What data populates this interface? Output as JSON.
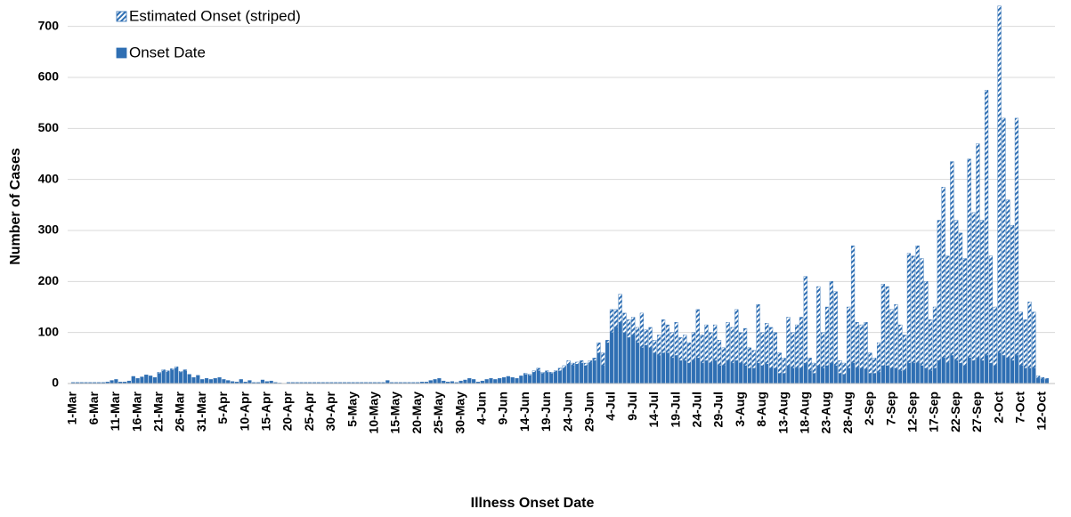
{
  "chart_data": {
    "type": "stacked-bar",
    "xlabel": "Illness Onset Date",
    "ylabel": "Number of Cases",
    "categories": [
      "1-Mar",
      null,
      null,
      null,
      null,
      "6-Mar",
      null,
      null,
      null,
      null,
      "11-Mar",
      null,
      null,
      null,
      null,
      "16-Mar",
      null,
      null,
      null,
      null,
      "21-Mar",
      null,
      null,
      null,
      null,
      "26-Mar",
      null,
      null,
      null,
      null,
      "31-Mar",
      null,
      null,
      null,
      null,
      "5-Apr",
      null,
      null,
      null,
      null,
      "10-Apr",
      null,
      null,
      null,
      null,
      "15-Apr",
      null,
      null,
      null,
      null,
      "20-Apr",
      null,
      null,
      null,
      null,
      "25-Apr",
      null,
      null,
      null,
      null,
      "30-Apr",
      null,
      null,
      null,
      null,
      "5-May",
      null,
      null,
      null,
      null,
      "10-May",
      null,
      null,
      null,
      null,
      "15-May",
      null,
      null,
      null,
      null,
      "20-May",
      null,
      null,
      null,
      null,
      "25-May",
      null,
      null,
      null,
      null,
      "30-May",
      null,
      null,
      null,
      null,
      "4-Jun",
      null,
      null,
      null,
      null,
      "9-Jun",
      null,
      null,
      null,
      null,
      "14-Jun",
      null,
      null,
      null,
      null,
      "19-Jun",
      null,
      null,
      null,
      null,
      "24-Jun",
      null,
      null,
      null,
      null,
      "29-Jun",
      null,
      null,
      null,
      null,
      "4-Jul",
      null,
      null,
      null,
      null,
      "9-Jul",
      null,
      null,
      null,
      null,
      "14-Jul",
      null,
      null,
      null,
      null,
      "19-Jul",
      null,
      null,
      null,
      null,
      "24-Jul",
      null,
      null,
      null,
      null,
      "29-Jul",
      null,
      null,
      null,
      null,
      "3-Aug",
      null,
      null,
      null,
      null,
      "8-Aug",
      null,
      null,
      null,
      null,
      "13-Aug",
      null,
      null,
      null,
      null,
      "18-Aug",
      null,
      null,
      null,
      null,
      "23-Aug",
      null,
      null,
      null,
      null,
      "28-Aug",
      null,
      null,
      null,
      null,
      "2-Sep",
      null,
      null,
      null,
      null,
      "7-Sep",
      null,
      null,
      null,
      null,
      "12-Sep",
      null,
      null,
      null,
      null,
      "17-Sep",
      null,
      null,
      null,
      null,
      "22-Sep",
      null,
      null,
      null,
      null,
      "27-Sep",
      null,
      null,
      null,
      null,
      "2-Oct",
      null,
      null,
      null,
      null,
      "7-Oct",
      null,
      null,
      null,
      null,
      "12-Oct",
      null
    ],
    "series": [
      {
        "name": "Estimated Onset (striped)",
        "color": "#2f6fb3",
        "hatch": true,
        "values": [
          0,
          0,
          0,
          0,
          0,
          0,
          0,
          0,
          0,
          0,
          0,
          0,
          0,
          0,
          0,
          0,
          0,
          0,
          0,
          0,
          2,
          2,
          3,
          2,
          3,
          2,
          2,
          0,
          0,
          0,
          0,
          0,
          0,
          0,
          0,
          0,
          0,
          0,
          0,
          0,
          0,
          0,
          0,
          0,
          0,
          0,
          0,
          0,
          0,
          0,
          0,
          0,
          0,
          0,
          0,
          0,
          0,
          0,
          0,
          0,
          0,
          0,
          0,
          0,
          0,
          0,
          0,
          0,
          0,
          0,
          0,
          0,
          0,
          0,
          0,
          0,
          0,
          0,
          0,
          0,
          0,
          0,
          0,
          0,
          0,
          0,
          0,
          0,
          0,
          0,
          0,
          0,
          0,
          0,
          0,
          0,
          0,
          0,
          0,
          0,
          0,
          0,
          0,
          0,
          0,
          2,
          2,
          3,
          5,
          2,
          3,
          2,
          3,
          5,
          5,
          7,
          5,
          4,
          5,
          5,
          5,
          5,
          20,
          25,
          5,
          45,
          35,
          55,
          38,
          35,
          35,
          30,
          68,
          30,
          40,
          25,
          40,
          65,
          55,
          50,
          65,
          45,
          50,
          40,
          55,
          95,
          55,
          70,
          60,
          70,
          50,
          35,
          75,
          70,
          100,
          60,
          73,
          40,
          35,
          115,
          65,
          80,
          80,
          70,
          40,
          30,
          95,
          70,
          85,
          100,
          170,
          25,
          20,
          155,
          70,
          115,
          160,
          145,
          25,
          22,
          120,
          230,
          90,
          85,
          92,
          40,
          30,
          58,
          160,
          155,
          115,
          125,
          90,
          70,
          215,
          210,
          230,
          210,
          170,
          100,
          120,
          275,
          335,
          210,
          380,
          275,
          255,
          210,
          390,
          290,
          420,
          275,
          520,
          210,
          115,
          680,
          465,
          310,
          265,
          465,
          105,
          95,
          130,
          110,
          5,
          4,
          2
        ]
      },
      {
        "name": "Onset Date",
        "color": "#2f6fb3",
        "hatch": false,
        "values": [
          2,
          2,
          2,
          2,
          2,
          2,
          2,
          2,
          3,
          6,
          8,
          3,
          3,
          5,
          14,
          10,
          13,
          17,
          15,
          12,
          20,
          25,
          22,
          27,
          30,
          22,
          25,
          18,
          12,
          16,
          8,
          10,
          8,
          10,
          12,
          8,
          6,
          4,
          3,
          8,
          3,
          6,
          2,
          2,
          7,
          4,
          5,
          2,
          1,
          0,
          2,
          2,
          2,
          2,
          2,
          2,
          2,
          2,
          2,
          2,
          2,
          2,
          2,
          2,
          2,
          2,
          2,
          2,
          2,
          2,
          2,
          2,
          2,
          6,
          2,
          2,
          2,
          2,
          2,
          2,
          2,
          3,
          3,
          6,
          8,
          10,
          5,
          3,
          4,
          2,
          5,
          7,
          10,
          8,
          3,
          5,
          8,
          10,
          8,
          10,
          12,
          14,
          12,
          10,
          15,
          18,
          16,
          22,
          25,
          20,
          22,
          20,
          22,
          25,
          30,
          38,
          35,
          38,
          40,
          35,
          40,
          45,
          60,
          35,
          80,
          100,
          110,
          120,
          100,
          90,
          95,
          80,
          70,
          75,
          70,
          60,
          55,
          60,
          60,
          50,
          55,
          45,
          45,
          40,
          45,
          50,
          40,
          45,
          40,
          45,
          35,
          35,
          45,
          40,
          45,
          40,
          35,
          30,
          30,
          40,
          35,
          38,
          30,
          30,
          20,
          20,
          35,
          30,
          30,
          30,
          40,
          25,
          20,
          35,
          30,
          35,
          40,
          35,
          20,
          18,
          30,
          40,
          30,
          30,
          28,
          20,
          20,
          22,
          35,
          35,
          30,
          30,
          25,
          25,
          40,
          40,
          40,
          35,
          30,
          25,
          30,
          45,
          50,
          40,
          55,
          45,
          40,
          35,
          50,
          45,
          50,
          45,
          55,
          40,
          35,
          60,
          55,
          50,
          45,
          55,
          35,
          30,
          30,
          30,
          10,
          8,
          8
        ]
      }
    ],
    "ylim": [
      0,
      750
    ],
    "yticks": [
      0,
      100,
      200,
      300,
      400,
      500,
      600,
      700
    ],
    "grid": true
  }
}
